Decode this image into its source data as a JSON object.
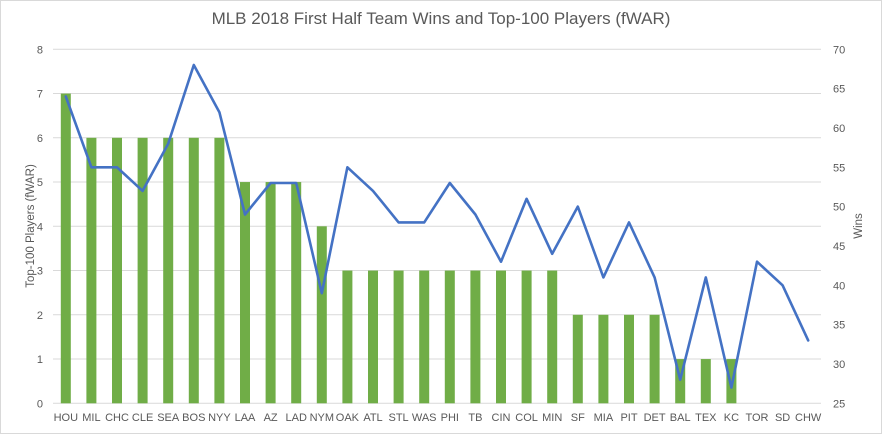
{
  "chart_data": {
    "type": "bar+line",
    "title": "MLB 2018 First Half Team Wins and Top-100 Players (fWAR)",
    "xlabel": "",
    "ylabel": "Top-100 Players (fWAR)",
    "y2label": "Wins",
    "ylim": [
      0,
      8
    ],
    "y2lim": [
      25,
      70
    ],
    "yticks": [
      0,
      1,
      2,
      3,
      4,
      5,
      6,
      7,
      8
    ],
    "y2ticks": [
      25,
      30,
      35,
      40,
      45,
      50,
      55,
      60,
      65,
      70
    ],
    "grid": true,
    "legend": "none",
    "categories": [
      "HOU",
      "MIL",
      "CHC",
      "CLE",
      "SEA",
      "BOS",
      "NYY",
      "LAA",
      "AZ",
      "LAD",
      "NYM",
      "OAK",
      "ATL",
      "STL",
      "WAS",
      "PHI",
      "TB",
      "CIN",
      "COL",
      "MIN",
      "SF",
      "MIA",
      "PIT",
      "DET",
      "BAL",
      "TEX",
      "KC",
      "TOR",
      "SD",
      "CHW"
    ],
    "series": [
      {
        "name": "Top-100 Players (fWAR)",
        "type": "bar",
        "axis": "left",
        "color": "#70AD47",
        "values": [
          7,
          6,
          6,
          6,
          6,
          6,
          6,
          5,
          5,
          5,
          4,
          3,
          3,
          3,
          3,
          3,
          3,
          3,
          3,
          3,
          2,
          2,
          2,
          2,
          1,
          1,
          1,
          0,
          0,
          0
        ]
      },
      {
        "name": "Wins",
        "type": "line",
        "axis": "right",
        "color": "#4472C4",
        "values": [
          64,
          55,
          55,
          52,
          58,
          68,
          62,
          49,
          53,
          53,
          39,
          55,
          52,
          48,
          48,
          53,
          49,
          43,
          51,
          44,
          50,
          41,
          48,
          41,
          28,
          41,
          27,
          43,
          40,
          33
        ]
      }
    ]
  },
  "colors": {
    "gridline": "#d9d9d9",
    "text": "#595959",
    "border": "#d9d9d9"
  }
}
